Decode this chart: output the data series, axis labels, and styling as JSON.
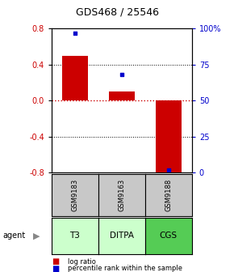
{
  "title": "GDS468 / 25546",
  "categories": [
    "T3",
    "DITPA",
    "CGS"
  ],
  "gsm_labels": [
    "GSM9183",
    "GSM9163",
    "GSM9188"
  ],
  "log_ratios": [
    0.5,
    0.1,
    -0.8
  ],
  "percentile_ranks": [
    97,
    68,
    2
  ],
  "ylim_left": [
    -0.8,
    0.8
  ],
  "ylim_right": [
    0,
    100
  ],
  "yticks_left": [
    -0.8,
    -0.4,
    0.0,
    0.4,
    0.8
  ],
  "yticks_right": [
    0,
    25,
    50,
    75,
    100
  ],
  "ytick_labels_right": [
    "0",
    "25",
    "50",
    "75",
    "100%"
  ],
  "bar_color": "#cc0000",
  "dot_color": "#0000cc",
  "hline_color": "#cc0000",
  "gsm_bg": "#c8c8c8",
  "agent_bg": [
    "#ccffcc",
    "#ccffcc",
    "#55cc55"
  ],
  "legend_bar_label": "log ratio",
  "legend_dot_label": "percentile rank within the sample",
  "agent_label": "agent",
  "bar_width": 0.55
}
